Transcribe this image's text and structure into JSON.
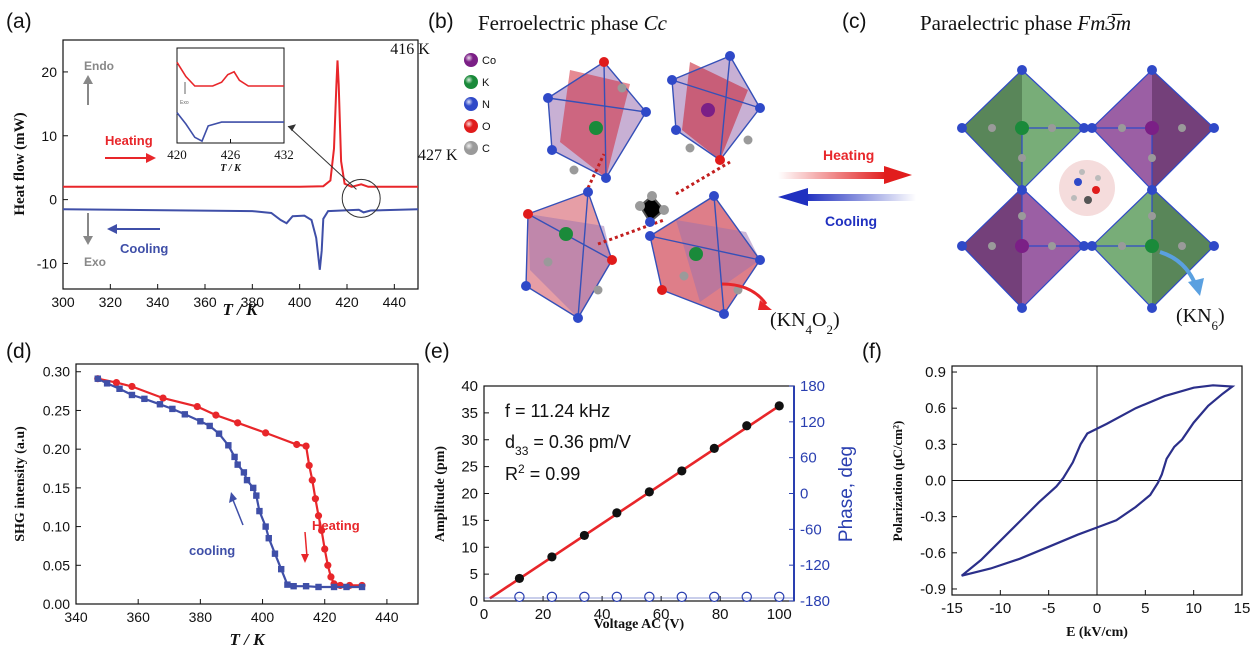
{
  "panels": {
    "a": {
      "tag": "(a)"
    },
    "b": {
      "tag": "(b)",
      "title": "Ferroelectric phase ",
      "title_italic": "Cc",
      "unit_label": "(KN4O2)",
      "legend": [
        {
          "label": "Co",
          "color": "#7b1f86"
        },
        {
          "label": "K",
          "color": "#1a8a3a"
        },
        {
          "label": "N",
          "color": "#2f49c8"
        },
        {
          "label": "O",
          "color": "#e01b1b"
        },
        {
          "label": "C",
          "color": "#9a9a9a"
        }
      ]
    },
    "arrows": {
      "heating": "Heating",
      "cooling": "Cooling"
    },
    "c": {
      "tag": "(c)",
      "title": "Paraelectric phase ",
      "title_italic": "Fm3̅m",
      "unit_label": "(KN6)"
    },
    "d": {
      "tag": "(d)"
    },
    "e": {
      "tag": "(e)"
    },
    "f": {
      "tag": "(f)"
    }
  },
  "colors": {
    "red": "#e8262a",
    "blue": "#3f4fa8",
    "navy": "#2b2f8a",
    "e_axis_blue": "#2a3fb0"
  },
  "chart_data": [
    {
      "id": "a",
      "type": "line",
      "xlabel": "T / K",
      "ylabel": "Heat flow (mW)",
      "xlim": [
        300,
        450
      ],
      "ylim": [
        -14,
        25
      ],
      "xticks": [
        300,
        320,
        340,
        360,
        380,
        400,
        420,
        440
      ],
      "yticks": [
        -10,
        0,
        10,
        20
      ],
      "annotations": [
        "416 K",
        "427 K",
        "Endo",
        "Exo",
        "Heating",
        "Cooling"
      ],
      "series": [
        {
          "name": "Heating",
          "color": "#e8262a",
          "points": [
            [
              300,
              2
            ],
            [
              400,
              2
            ],
            [
              410,
              2.1
            ],
            [
              413,
              3
            ],
            [
              414.5,
              8
            ],
            [
              415.5,
              18
            ],
            [
              416,
              21.8
            ],
            [
              416.5,
              18
            ],
            [
              417.5,
              6
            ],
            [
              419,
              2.5
            ],
            [
              422,
              2
            ],
            [
              426,
              2.4
            ],
            [
              429,
              2
            ],
            [
              450,
              2
            ]
          ]
        },
        {
          "name": "Cooling",
          "color": "#3f4fa8",
          "points": [
            [
              300,
              -1.5
            ],
            [
              380,
              -1.8
            ],
            [
              388,
              -2.1
            ],
            [
              392,
              -3.2
            ],
            [
              394.5,
              -3.7
            ],
            [
              397,
              -2.6
            ],
            [
              402,
              -2.5
            ],
            [
              405,
              -3.2
            ],
            [
              407,
              -6
            ],
            [
              408.5,
              -11
            ],
            [
              409.3,
              -8
            ],
            [
              410,
              -3
            ],
            [
              412,
              -1.8
            ],
            [
              425,
              -1.6
            ],
            [
              427,
              -2
            ],
            [
              430,
              -1.7
            ],
            [
              450,
              -1.5
            ]
          ]
        }
      ],
      "inset": {
        "xlim": [
          420,
          432
        ],
        "xticks": [
          420,
          426,
          432
        ],
        "xlabel": "T / K",
        "marker_text": "Exo",
        "series": [
          {
            "color": "#e8262a",
            "points": [
              [
                420,
                0.85
              ],
              [
                421,
                0.7
              ],
              [
                422,
                0.6
              ],
              [
                424,
                0.6
              ],
              [
                425,
                0.64
              ],
              [
                425.7,
                0.72
              ],
              [
                426.4,
                0.75
              ],
              [
                427,
                0.66
              ],
              [
                428,
                0.6
              ],
              [
                432,
                0.6
              ]
            ]
          },
          {
            "color": "#3f4fa8",
            "points": [
              [
                420,
                0.32
              ],
              [
                421,
                0.2
              ],
              [
                422,
                0.06
              ],
              [
                422.8,
                0.02
              ],
              [
                423.5,
                0.18
              ],
              [
                425,
                0.22
              ],
              [
                432,
                0.22
              ]
            ]
          }
        ]
      }
    },
    {
      "id": "d",
      "type": "line",
      "xlabel": "T / K",
      "ylabel": "SHG intensity (a.u)",
      "xlim": [
        340,
        450
      ],
      "ylim": [
        0,
        0.31
      ],
      "xticks": [
        340,
        360,
        380,
        400,
        420,
        440
      ],
      "yticks": [
        0.0,
        0.05,
        0.1,
        0.15,
        0.2,
        0.25,
        0.3
      ],
      "annotations": [
        "Heating",
        "cooling"
      ],
      "series": [
        {
          "name": "Heating",
          "color": "#e8262a",
          "points": [
            [
              347,
              0.291
            ],
            [
              353,
              0.286
            ],
            [
              358,
              0.281
            ],
            [
              368,
              0.266
            ],
            [
              379,
              0.255
            ],
            [
              385,
              0.244
            ],
            [
              392,
              0.234
            ],
            [
              401,
              0.221
            ],
            [
              411,
              0.206
            ],
            [
              414,
              0.204
            ],
            [
              415,
              0.179
            ],
            [
              416,
              0.16
            ],
            [
              417,
              0.136
            ],
            [
              418,
              0.114
            ],
            [
              419,
              0.095
            ],
            [
              420,
              0.071
            ],
            [
              421,
              0.05
            ],
            [
              422,
              0.035
            ],
            [
              423,
              0.026
            ],
            [
              425,
              0.024
            ],
            [
              428,
              0.024
            ],
            [
              432,
              0.024
            ]
          ]
        },
        {
          "name": "cooling",
          "color": "#3f4fa8",
          "points": [
            [
              347,
              0.291
            ],
            [
              350,
              0.285
            ],
            [
              354,
              0.278
            ],
            [
              358,
              0.27
            ],
            [
              362,
              0.265
            ],
            [
              367,
              0.258
            ],
            [
              371,
              0.252
            ],
            [
              375,
              0.245
            ],
            [
              380,
              0.236
            ],
            [
              383,
              0.23
            ],
            [
              386,
              0.22
            ],
            [
              389,
              0.205
            ],
            [
              391,
              0.19
            ],
            [
              392,
              0.18
            ],
            [
              394,
              0.17
            ],
            [
              395,
              0.16
            ],
            [
              397,
              0.15
            ],
            [
              398,
              0.14
            ],
            [
              399,
              0.12
            ],
            [
              401,
              0.1
            ],
            [
              402,
              0.085
            ],
            [
              404,
              0.065
            ],
            [
              406,
              0.045
            ],
            [
              408,
              0.025
            ],
            [
              410,
              0.023
            ],
            [
              414,
              0.023
            ],
            [
              418,
              0.022
            ],
            [
              423,
              0.022
            ],
            [
              427,
              0.022
            ],
            [
              432,
              0.022
            ]
          ]
        }
      ]
    },
    {
      "id": "e",
      "type": "scatter",
      "xlabel": "Voltage AC (V)",
      "ylabel": "Amplitude (pm)",
      "y2label": "Phase, deg",
      "xlim": [
        0,
        105
      ],
      "ylim": [
        0,
        40
      ],
      "y2lim": [
        -180,
        180
      ],
      "xticks": [
        0,
        20,
        40,
        60,
        80,
        100
      ],
      "yticks": [
        0,
        5,
        10,
        15,
        20,
        25,
        30,
        35,
        40
      ],
      "y2ticks": [
        -180,
        -120,
        -60,
        0,
        60,
        120,
        180
      ],
      "annotations": {
        "f": "f = 11.24 kHz",
        "d33": "d33 = 0.36 pm/V",
        "r2": "R2 = 0.99"
      },
      "fit_line": {
        "color": "#e8262a",
        "points": [
          [
            2,
            0.5
          ],
          [
            100,
            36.3
          ]
        ]
      },
      "series": [
        {
          "name": "Amplitude",
          "color": "#111111",
          "x": [
            12,
            23,
            34,
            45,
            56,
            67,
            78,
            89,
            100
          ],
          "y": [
            4.2,
            8.2,
            12.2,
            16.4,
            20.3,
            24.2,
            28.4,
            32.6,
            36.3
          ]
        },
        {
          "name": "Phase",
          "color": "#2a3fb0",
          "x": [
            12,
            23,
            34,
            45,
            56,
            67,
            78,
            89,
            100
          ],
          "y": [
            -173,
            -173,
            -173,
            -173,
            -173,
            -173,
            -173,
            -173,
            -173
          ]
        }
      ]
    },
    {
      "id": "f",
      "type": "line",
      "xlabel": "E (kV/cm)",
      "ylabel": "Polarization (μC/cm²)",
      "xlim": [
        -15,
        15
      ],
      "ylim": [
        -0.95,
        0.95
      ],
      "xticks": [
        -15,
        -10,
        -5,
        0,
        5,
        10,
        15
      ],
      "yticks": [
        -0.9,
        -0.6,
        -0.3,
        0.0,
        0.3,
        0.6,
        0.9
      ],
      "series": [
        {
          "name": "P-E loop",
          "color": "#2b2f8a",
          "points": [
            [
              -14,
              -0.79
            ],
            [
              -11,
              -0.73
            ],
            [
              -8,
              -0.65
            ],
            [
              -5,
              -0.55
            ],
            [
              -2,
              -0.45
            ],
            [
              0,
              -0.39
            ],
            [
              2,
              -0.33
            ],
            [
              4,
              -0.22
            ],
            [
              5.5,
              -0.12
            ],
            [
              6.3,
              -0.02
            ],
            [
              6.7,
              0.05
            ],
            [
              7.2,
              0.18
            ],
            [
              8,
              0.28
            ],
            [
              8.8,
              0.34
            ],
            [
              10,
              0.48
            ],
            [
              11.5,
              0.62
            ],
            [
              13,
              0.72
            ],
            [
              14,
              0.78
            ],
            [
              12,
              0.79
            ],
            [
              10,
              0.77
            ],
            [
              7,
              0.7
            ],
            [
              4,
              0.6
            ],
            [
              1,
              0.47
            ],
            [
              -1,
              0.39
            ],
            [
              -1.7,
              0.3
            ],
            [
              -2.5,
              0.15
            ],
            [
              -3.5,
              0.02
            ],
            [
              -4.2,
              -0.05
            ],
            [
              -6,
              -0.18
            ],
            [
              -8,
              -0.34
            ],
            [
              -10,
              -0.5
            ],
            [
              -12,
              -0.66
            ],
            [
              -14,
              -0.79
            ]
          ]
        }
      ]
    }
  ]
}
